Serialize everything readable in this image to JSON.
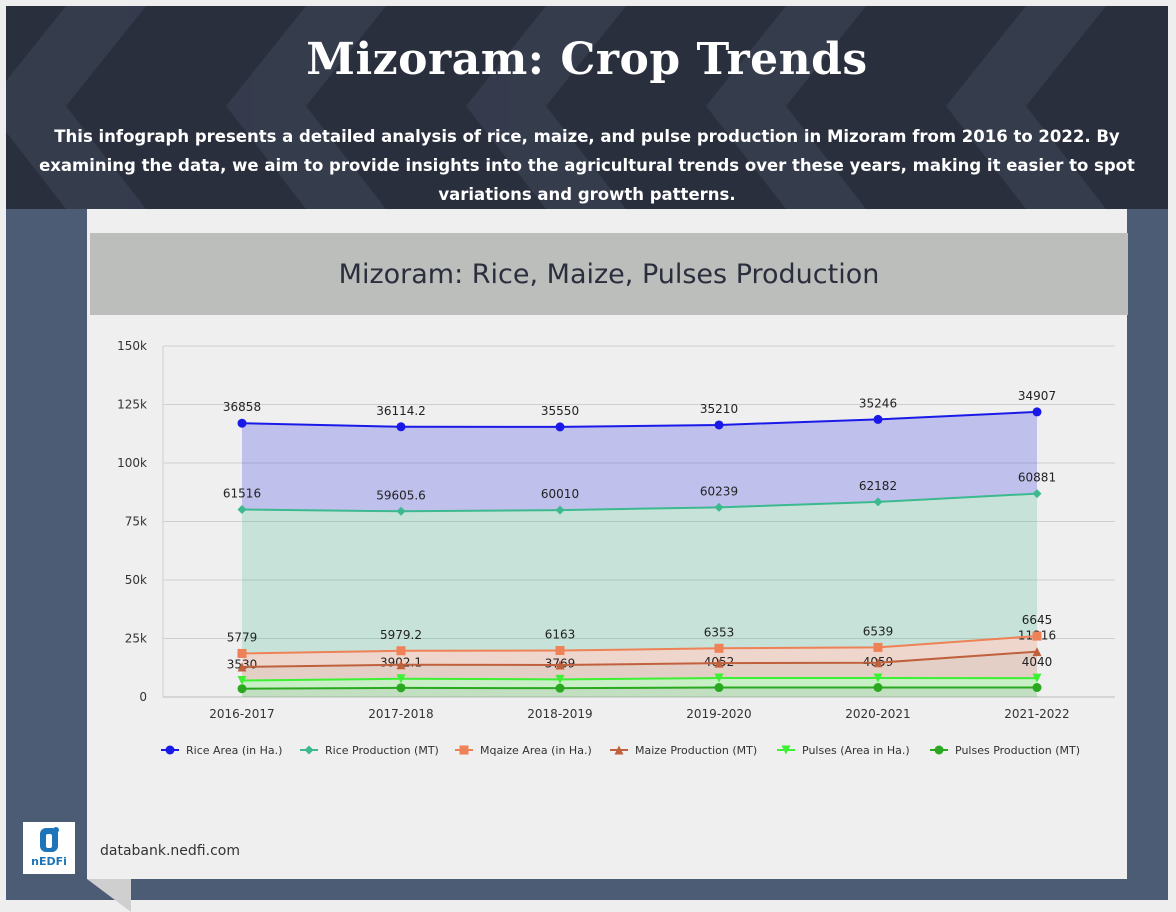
{
  "header": {
    "title": "Mizoram: Crop Trends",
    "description": "This infograph presents a detailed analysis of rice, maize, and pulse production in Mizoram from 2016 to 2022. By examining the data, we aim to provide insights into the agricultural trends over these years, making it easier to spot variations and growth patterns."
  },
  "footer": {
    "logo_text": "nEDFi",
    "source": "databank.nedfi.com"
  },
  "chart_data": {
    "type": "area",
    "title": "Mizoram: Rice, Maize, Pulses Production",
    "xlabel": "",
    "ylabel": "",
    "categories": [
      "2016-2017",
      "2017-2018",
      "2018-2019",
      "2019-2020",
      "2020-2021",
      "2021-2022"
    ],
    "y_ticks": [
      "0",
      "25k",
      "50k",
      "75k",
      "100k",
      "125k",
      "150k"
    ],
    "ylim": [
      0,
      150000
    ],
    "stacked": true,
    "grid": true,
    "legend_position": "bottom",
    "series": [
      {
        "name": "Pulses Production (MT)",
        "values": [
          3530,
          3902.1,
          3769,
          4052,
          4059,
          4040
        ],
        "color": "#2aa820",
        "marker": "circle"
      },
      {
        "name": "Pulses (Area in Ha.)",
        "values": [
          3530,
          3902.1,
          3769,
          4052,
          4059,
          4040
        ],
        "color": "#3ef034",
        "marker": "triangle-down"
      },
      {
        "name": "Maize Production (MT)",
        "values": [
          5779,
          5979.2,
          6163,
          6353,
          6539,
          11316
        ],
        "color": "#c0613d",
        "marker": "triangle-up"
      },
      {
        "name": "Mqaize Area (in Ha.)",
        "values": [
          5779,
          5979.2,
          6163,
          6353,
          6539,
          6645
        ],
        "color": "#ee8156",
        "marker": "square"
      },
      {
        "name": "Rice Production (MT)",
        "values": [
          61516,
          59605.6,
          60010,
          60239,
          62182,
          60881
        ],
        "color": "#3cb98f",
        "marker": "diamond"
      },
      {
        "name": "Rice Area (in Ha.)",
        "values": [
          36858,
          36114.2,
          35550,
          35210,
          35246,
          34907
        ],
        "color": "#1a1ae8",
        "marker": "circle"
      }
    ],
    "legend_order": [
      "Rice Area (in Ha.)",
      "Rice Production (MT)",
      "Mqaize Area (in Ha.)",
      "Maize Production (MT)",
      "Pulses (Area in Ha.)",
      "Pulses Production (MT)"
    ],
    "data_labels": {
      "Rice Area (in Ha.)": [
        "36858",
        "36114.2",
        "35550",
        "35210",
        "35246",
        "34907"
      ],
      "Rice Production (MT)": [
        "61516",
        "59605.6",
        "60010",
        "60239",
        "62182",
        "60881"
      ],
      "Mqaize Area (in Ha.)": [
        "5779",
        "5979.2",
        "6163",
        "6353",
        "6539",
        "6645"
      ],
      "Maize Production (MT)": [
        "",
        "",
        "",
        "",
        "",
        "11316"
      ],
      "Pulses (Area in Ha.)": [
        "3530",
        "3902.1",
        "3769",
        "4052",
        "4059",
        "4040"
      ]
    }
  }
}
